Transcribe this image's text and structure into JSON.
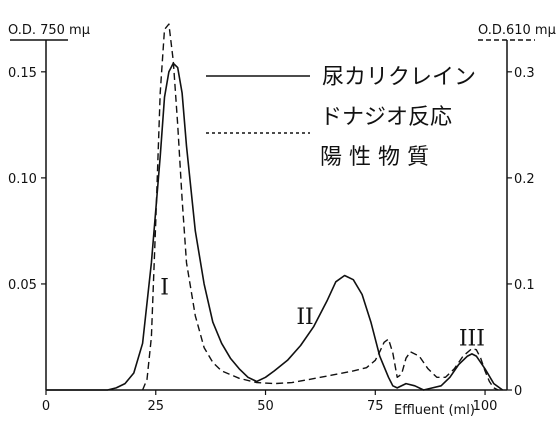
{
  "chart_data": {
    "type": "line",
    "xlabel": "Effluent (ml)",
    "x_ticks": [
      0,
      25,
      50,
      75,
      100
    ],
    "x_range": [
      0,
      105
    ],
    "y_left": {
      "label": "O.D. 750 mμ",
      "ticks": [
        "0.05",
        "0.10",
        "0.15"
      ],
      "range": [
        0,
        0.165
      ]
    },
    "y_right": {
      "label": "O.D.610 mμ",
      "ticks": [
        "0",
        "0.1",
        "0.2",
        "0.3"
      ],
      "range": [
        0,
        0.33
      ]
    },
    "series": [
      {
        "name": "尿カリクレイン",
        "axis": "left",
        "style": "solid",
        "points": [
          [
            0,
            0
          ],
          [
            14,
            0
          ],
          [
            16,
            0.001
          ],
          [
            18,
            0.003
          ],
          [
            20,
            0.008
          ],
          [
            22,
            0.022
          ],
          [
            24,
            0.06
          ],
          [
            26,
            0.11
          ],
          [
            27,
            0.138
          ],
          [
            28,
            0.15
          ],
          [
            29,
            0.154
          ],
          [
            30,
            0.152
          ],
          [
            31,
            0.14
          ],
          [
            32,
            0.115
          ],
          [
            34,
            0.075
          ],
          [
            36,
            0.05
          ],
          [
            38,
            0.032
          ],
          [
            40,
            0.022
          ],
          [
            42,
            0.015
          ],
          [
            44,
            0.01
          ],
          [
            46,
            0.006
          ],
          [
            48,
            0.004
          ],
          [
            50,
            0.006
          ],
          [
            52,
            0.009
          ],
          [
            55,
            0.014
          ],
          [
            58,
            0.021
          ],
          [
            61,
            0.03
          ],
          [
            64,
            0.042
          ],
          [
            66,
            0.051
          ],
          [
            68,
            0.054
          ],
          [
            70,
            0.052
          ],
          [
            72,
            0.045
          ],
          [
            74,
            0.032
          ],
          [
            76,
            0.016
          ],
          [
            78,
            0.006
          ],
          [
            79,
            0.002
          ],
          [
            80,
            0.001
          ],
          [
            82,
            0.003
          ],
          [
            84,
            0.002
          ],
          [
            86,
            0.0
          ],
          [
            88,
            0.001
          ],
          [
            90,
            0.002
          ],
          [
            92,
            0.006
          ],
          [
            94,
            0.012
          ],
          [
            96,
            0.016
          ],
          [
            97,
            0.017
          ],
          [
            98,
            0.016
          ],
          [
            100,
            0.01
          ],
          [
            102,
            0.003
          ],
          [
            104,
            0
          ]
        ]
      },
      {
        "name": "ドナジオ反応陽性物質",
        "axis": "right",
        "style": "dashed",
        "points": [
          [
            22,
            0
          ],
          [
            23,
            0.01
          ],
          [
            24,
            0.05
          ],
          [
            25,
            0.16
          ],
          [
            26,
            0.28
          ],
          [
            27,
            0.34
          ],
          [
            28,
            0.345
          ],
          [
            29,
            0.31
          ],
          [
            30,
            0.25
          ],
          [
            31,
            0.18
          ],
          [
            32,
            0.12
          ],
          [
            34,
            0.07
          ],
          [
            36,
            0.04
          ],
          [
            38,
            0.026
          ],
          [
            40,
            0.018
          ],
          [
            44,
            0.011
          ],
          [
            48,
            0.007
          ],
          [
            52,
            0.006
          ],
          [
            56,
            0.007
          ],
          [
            60,
            0.01
          ],
          [
            65,
            0.014
          ],
          [
            70,
            0.018
          ],
          [
            73,
            0.021
          ],
          [
            75,
            0.028
          ],
          [
            76,
            0.036
          ],
          [
            77,
            0.045
          ],
          [
            78,
            0.048
          ],
          [
            79,
            0.035
          ],
          [
            80,
            0.012
          ],
          [
            81,
            0.015
          ],
          [
            82,
            0.03
          ],
          [
            83,
            0.036
          ],
          [
            85,
            0.032
          ],
          [
            87,
            0.02
          ],
          [
            89,
            0.012
          ],
          [
            91,
            0.012
          ],
          [
            93,
            0.02
          ],
          [
            95,
            0.032
          ],
          [
            97,
            0.039
          ],
          [
            98,
            0.038
          ],
          [
            99,
            0.03
          ],
          [
            100,
            0.018
          ],
          [
            101,
            0.008
          ],
          [
            102,
            0.002
          ],
          [
            103,
            0
          ]
        ]
      }
    ],
    "legend": {
      "solid_label": "尿カリクレイン",
      "dashed_label_line1": "ドナジオ反応",
      "dashed_label_line2": "陽 性 物 質"
    },
    "annotations": [
      {
        "text": "I",
        "x": 27,
        "y": 0.045
      },
      {
        "text": "II",
        "x": 59,
        "y": 0.031
      },
      {
        "text": "III",
        "x": 97,
        "y": 0.021
      }
    ]
  }
}
